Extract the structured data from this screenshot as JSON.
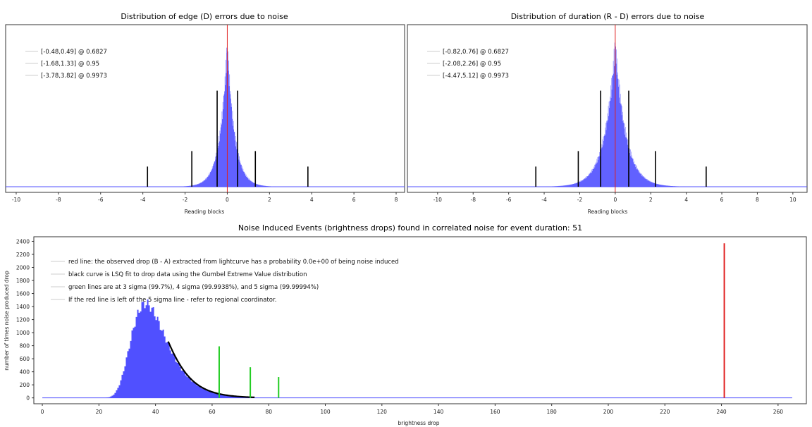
{
  "chart_data": [
    {
      "id": "edge",
      "type": "bar",
      "title": "Distribution of edge (D) errors due to noise",
      "xlabel": "Reading blocks",
      "ylabel": "",
      "xlim": [
        -10.5,
        8.4
      ],
      "xticks": [
        -10,
        -8,
        -6,
        -4,
        -2,
        0,
        2,
        4,
        6,
        8
      ],
      "grid": false,
      "legend_position": "top-left",
      "histogram": {
        "center": 0.0,
        "scale": 0.35,
        "color": "#5050ff"
      },
      "legend": [
        "[-0.48,0.49] @ 0.6827",
        "[-1.68,1.33] @ 0.95",
        "[-3.78,3.82] @ 0.9973"
      ],
      "confidence_lines": [
        {
          "x": -0.48,
          "height": 0.62
        },
        {
          "x": 0.49,
          "height": 0.62
        },
        {
          "x": -1.68,
          "height": 0.23
        },
        {
          "x": 1.33,
          "height": 0.23
        },
        {
          "x": -3.78,
          "height": 0.13
        },
        {
          "x": 3.82,
          "height": 0.13
        }
      ],
      "red_line_x": 0.0
    },
    {
      "id": "duration",
      "type": "bar",
      "title": "Distribution of duration (R - D) errors due to noise",
      "xlabel": "Reading blocks",
      "ylabel": "",
      "xlim": [
        -11.7,
        10.8
      ],
      "xticks": [
        -10,
        -8,
        -6,
        -4,
        -2,
        0,
        2,
        4,
        6,
        8,
        10
      ],
      "grid": false,
      "legend_position": "top-left",
      "histogram": {
        "center": 0.0,
        "scale": 0.6,
        "color": "#5050ff"
      },
      "legend": [
        "[-0.82,0.76] @ 0.6827",
        "[-2.08,2.26] @ 0.95",
        "[-4.47,5.12] @ 0.9973"
      ],
      "confidence_lines": [
        {
          "x": -0.82,
          "height": 0.62
        },
        {
          "x": 0.76,
          "height": 0.62
        },
        {
          "x": -2.08,
          "height": 0.23
        },
        {
          "x": 2.26,
          "height": 0.23
        },
        {
          "x": -4.47,
          "height": 0.13
        },
        {
          "x": 5.12,
          "height": 0.13
        }
      ],
      "red_line_x": 0.0
    },
    {
      "id": "nie",
      "type": "bar",
      "title": "Noise Induced Events (brightness drops) found in correlated noise for event duration: 51",
      "xlabel": "brightness drop",
      "ylabel": "number of times noise produced drop",
      "xlim": [
        -3,
        270
      ],
      "ylim": [
        -90,
        2470
      ],
      "xticks": [
        0,
        20,
        40,
        60,
        80,
        100,
        120,
        140,
        160,
        180,
        200,
        220,
        240,
        260
      ],
      "yticks": [
        0,
        200,
        400,
        600,
        800,
        1000,
        1200,
        1400,
        1600,
        1800,
        2000,
        2200,
        2400
      ],
      "grid": false,
      "legend_position": "top-left",
      "histogram": {
        "mode": 36.5,
        "peak": 1520,
        "start": 19,
        "end": 75,
        "color": "#5050ff"
      },
      "gumbel_fit": {
        "x_from": 44.5,
        "x_to": 75,
        "mode": 36.5,
        "scale": 6.2,
        "peak": 1520
      },
      "sigma_lines": [
        {
          "label": "3 sigma",
          "x": 62.5,
          "y": 790
        },
        {
          "label": "4 sigma",
          "x": 73.5,
          "y": 470
        },
        {
          "label": "5 sigma",
          "x": 83.5,
          "y": 320
        }
      ],
      "observed_drop": {
        "x": 241,
        "y": 2370
      },
      "legend": [
        "red line: the observed drop (B - A) extracted from lightcurve has a probability 0.0e+00 of being noise induced",
        "black curve is LSQ fit to drop data using the Gumbel Extreme Value distribution",
        "green lines are at 3 sigma (99.7%), 4 sigma (99.9938%), and 5 sigma (99.99994%)",
        "If the red line is left of the 5 sigma line - refer to regional coordinator."
      ]
    }
  ],
  "colors": {
    "histogram": "#5050ff",
    "observed": "#e02020",
    "sigma": "#22cc22",
    "fit": "#000000",
    "frame": "#333333"
  }
}
